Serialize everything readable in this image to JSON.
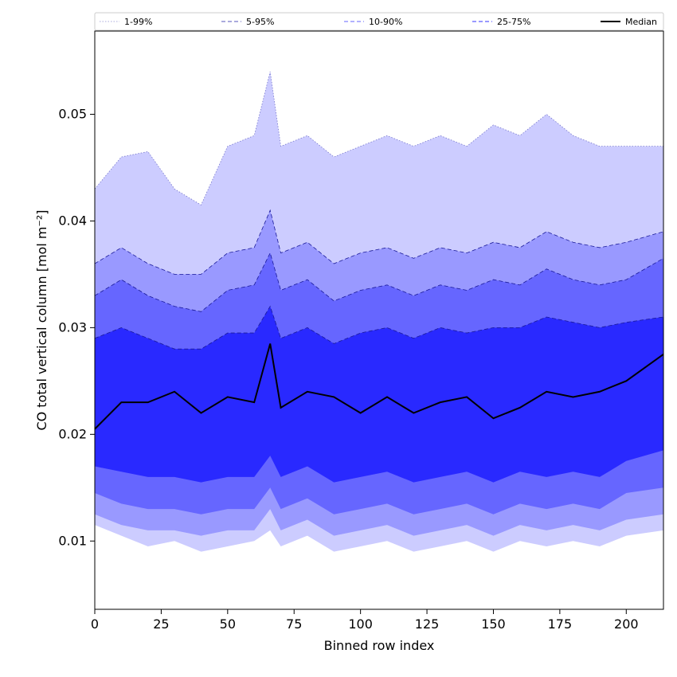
{
  "chart_data": {
    "type": "area",
    "title": "",
    "xlabel": "Binned row index",
    "ylabel": "CO total vertical column [mol m⁻²]",
    "xlim": [
      0,
      214
    ],
    "ylim": [
      0.0036,
      0.0578
    ],
    "xticks": [
      "0",
      "25",
      "50",
      "75",
      "100",
      "125",
      "150",
      "175",
      "200"
    ],
    "yticks": [
      "0.01",
      "0.02",
      "0.03",
      "0.04",
      "0.05"
    ],
    "grid": false,
    "legend_position": "top",
    "legend": [
      {
        "label": "1-99%",
        "style": "dotted",
        "color": "#ccccff"
      },
      {
        "label": "5-95%",
        "style": "dashed",
        "color": "#9999ff"
      },
      {
        "label": "10-90%",
        "style": "dashed",
        "color": "#6666ff"
      },
      {
        "label": "25-75%",
        "style": "dashed",
        "color": "#3333ff"
      },
      {
        "label": "Median",
        "style": "solid",
        "color": "#000000"
      }
    ],
    "x": [
      0,
      10,
      20,
      30,
      40,
      50,
      60,
      66,
      70,
      80,
      90,
      100,
      110,
      120,
      130,
      140,
      150,
      160,
      170,
      180,
      190,
      200,
      214
    ],
    "bands": [
      {
        "name": "1-99%",
        "color": "#ccccff",
        "low": [
          0.0115,
          0.0105,
          0.0095,
          0.01,
          0.009,
          0.0095,
          0.01,
          0.011,
          0.0095,
          0.0105,
          0.009,
          0.0095,
          0.01,
          0.009,
          0.0095,
          0.01,
          0.009,
          0.01,
          0.0095,
          0.01,
          0.0095,
          0.0105,
          0.011
        ],
        "high": [
          0.043,
          0.046,
          0.0465,
          0.043,
          0.0415,
          0.047,
          0.048,
          0.054,
          0.047,
          0.048,
          0.046,
          0.047,
          0.048,
          0.047,
          0.048,
          0.047,
          0.049,
          0.048,
          0.05,
          0.048,
          0.047,
          0.047,
          0.047
        ]
      },
      {
        "name": "5-95%",
        "color": "#9999ff",
        "low": [
          0.0125,
          0.0115,
          0.011,
          0.011,
          0.0105,
          0.011,
          0.011,
          0.013,
          0.011,
          0.012,
          0.0105,
          0.011,
          0.0115,
          0.0105,
          0.011,
          0.0115,
          0.0105,
          0.0115,
          0.011,
          0.0115,
          0.011,
          0.012,
          0.0125
        ],
        "high": [
          0.036,
          0.0375,
          0.036,
          0.035,
          0.035,
          0.037,
          0.0375,
          0.041,
          0.037,
          0.038,
          0.036,
          0.037,
          0.0375,
          0.0365,
          0.0375,
          0.037,
          0.038,
          0.0375,
          0.039,
          0.038,
          0.0375,
          0.038,
          0.039
        ]
      },
      {
        "name": "10-90%",
        "color": "#6666ff",
        "low": [
          0.0145,
          0.0135,
          0.013,
          0.013,
          0.0125,
          0.013,
          0.013,
          0.015,
          0.013,
          0.014,
          0.0125,
          0.013,
          0.0135,
          0.0125,
          0.013,
          0.0135,
          0.0125,
          0.0135,
          0.013,
          0.0135,
          0.013,
          0.0145,
          0.015
        ],
        "high": [
          0.033,
          0.0345,
          0.033,
          0.032,
          0.0315,
          0.0335,
          0.034,
          0.037,
          0.0335,
          0.0345,
          0.0325,
          0.0335,
          0.034,
          0.033,
          0.034,
          0.0335,
          0.0345,
          0.034,
          0.0355,
          0.0345,
          0.034,
          0.0345,
          0.0365
        ]
      },
      {
        "name": "25-75%",
        "color": "#2929ff",
        "low": [
          0.017,
          0.0165,
          0.016,
          0.016,
          0.0155,
          0.016,
          0.016,
          0.018,
          0.016,
          0.017,
          0.0155,
          0.016,
          0.0165,
          0.0155,
          0.016,
          0.0165,
          0.0155,
          0.0165,
          0.016,
          0.0165,
          0.016,
          0.0175,
          0.0185
        ],
        "high": [
          0.029,
          0.03,
          0.029,
          0.028,
          0.028,
          0.0295,
          0.0295,
          0.032,
          0.029,
          0.03,
          0.0285,
          0.0295,
          0.03,
          0.029,
          0.03,
          0.0295,
          0.03,
          0.03,
          0.031,
          0.0305,
          0.03,
          0.0305,
          0.031
        ]
      }
    ],
    "median": {
      "name": "Median",
      "color": "#000000",
      "values": [
        0.0205,
        0.023,
        0.023,
        0.024,
        0.022,
        0.0235,
        0.023,
        0.0285,
        0.0225,
        0.024,
        0.0235,
        0.022,
        0.0235,
        0.022,
        0.023,
        0.0235,
        0.0215,
        0.0225,
        0.024,
        0.0235,
        0.024,
        0.025,
        0.0275
      ]
    }
  }
}
